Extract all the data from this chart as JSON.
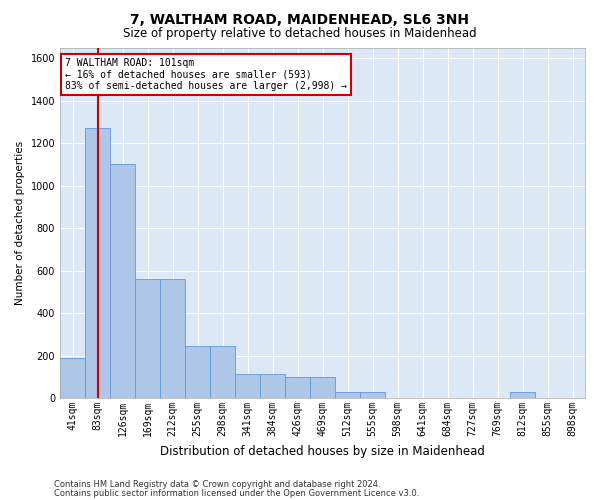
{
  "title": "7, WALTHAM ROAD, MAIDENHEAD, SL6 3NH",
  "subtitle": "Size of property relative to detached houses in Maidenhead",
  "xlabel": "Distribution of detached houses by size in Maidenhead",
  "ylabel": "Number of detached properties",
  "footer_line1": "Contains HM Land Registry data © Crown copyright and database right 2024.",
  "footer_line2": "Contains public sector information licensed under the Open Government Licence v3.0.",
  "annotation_title": "7 WALTHAM ROAD: 101sqm",
  "annotation_line2": "← 16% of detached houses are smaller (593)",
  "annotation_line3": "83% of semi-detached houses are larger (2,998) →",
  "bar_categories": [
    "41sqm",
    "83sqm",
    "126sqm",
    "169sqm",
    "212sqm",
    "255sqm",
    "298sqm",
    "341sqm",
    "384sqm",
    "426sqm",
    "469sqm",
    "512sqm",
    "555sqm",
    "598sqm",
    "641sqm",
    "684sqm",
    "727sqm",
    "769sqm",
    "812sqm",
    "855sqm",
    "898sqm"
  ],
  "bar_values": [
    190,
    1270,
    1100,
    560,
    560,
    245,
    245,
    115,
    115,
    100,
    100,
    28,
    28,
    0,
    0,
    0,
    0,
    0,
    28,
    0,
    0
  ],
  "bar_color": "#aec6e8",
  "bar_edge_color": "#5b9bd5",
  "vline_color": "#cc0000",
  "vline_x": 1.0,
  "annotation_box_color": "#cc0000",
  "plot_bg_color": "#dce8f5",
  "fig_bg_color": "#ffffff",
  "ylim": [
    0,
    1650
  ],
  "yticks": [
    0,
    200,
    400,
    600,
    800,
    1000,
    1200,
    1400,
    1600
  ],
  "title_fontsize": 10,
  "subtitle_fontsize": 8.5,
  "ylabel_fontsize": 7.5,
  "xlabel_fontsize": 8.5,
  "tick_fontsize": 7,
  "annotation_fontsize": 7,
  "footer_fontsize": 6
}
